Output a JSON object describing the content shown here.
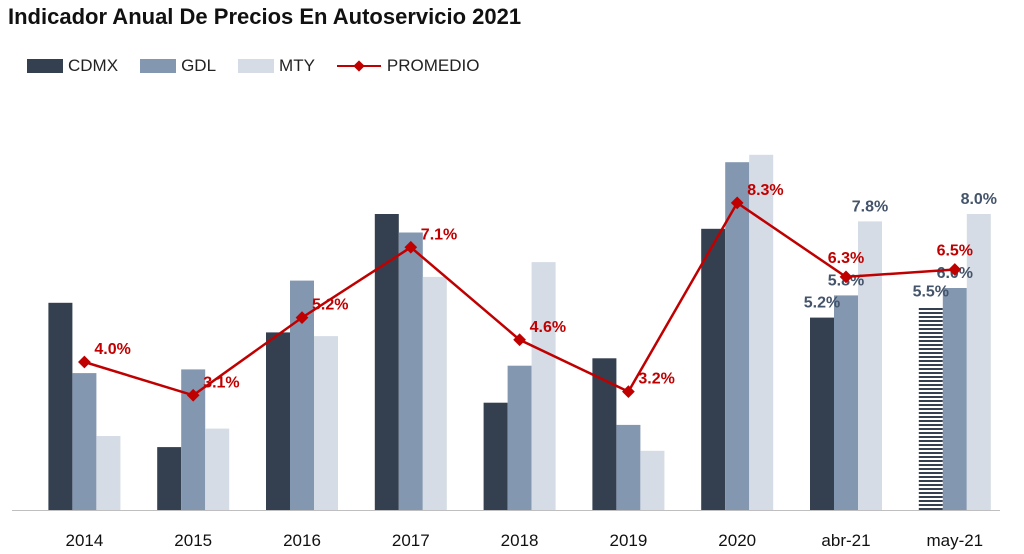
{
  "chart_data": {
    "type": "bar",
    "title": "Indicador Anual De Precios En Autoservicio 2021",
    "categories": [
      "2014",
      "2015",
      "2016",
      "2017",
      "2018",
      "2019",
      "2020",
      "abr-21",
      "may-21"
    ],
    "series": [
      {
        "name": "CDMX",
        "type": "bar",
        "color": "#343f50",
        "values": [
          5.6,
          1.7,
          4.8,
          8.0,
          2.9,
          4.1,
          7.6,
          5.2,
          5.5
        ]
      },
      {
        "name": "GDL",
        "type": "bar",
        "color": "#8497b0",
        "values": [
          3.7,
          3.8,
          6.2,
          7.5,
          3.9,
          2.3,
          9.4,
          5.8,
          6.0
        ]
      },
      {
        "name": "MTY",
        "type": "bar",
        "color": "#d6dce5",
        "values": [
          2.0,
          2.2,
          4.7,
          6.3,
          6.7,
          1.6,
          9.6,
          7.8,
          8.0
        ]
      },
      {
        "name": "PROMEDIO",
        "type": "line",
        "color": "#c00000",
        "values": [
          4.0,
          3.1,
          5.2,
          7.1,
          4.6,
          3.2,
          8.3,
          6.3,
          6.5
        ]
      }
    ],
    "avg_labels": [
      "4.0%",
      "3.1%",
      "5.2%",
      "7.1%",
      "4.6%",
      "3.2%",
      "8.3%",
      "6.3%",
      "6.5%"
    ],
    "bar_labels": [
      {
        "category": "abr-21",
        "series": "CDMX",
        "text": "5.2%"
      },
      {
        "category": "abr-21",
        "series": "GDL",
        "text": "5.8%"
      },
      {
        "category": "abr-21",
        "series": "MTY",
        "text": "7.8%"
      },
      {
        "category": "may-21",
        "series": "CDMX",
        "text": "5.5%"
      },
      {
        "category": "may-21",
        "series": "GDL",
        "text": "6.0%"
      },
      {
        "category": "may-21",
        "series": "MTY",
        "text": "8.0%"
      }
    ],
    "ylim": [
      0,
      10
    ],
    "grid": false,
    "legend": "top-left",
    "xlabel": "",
    "ylabel": ""
  }
}
